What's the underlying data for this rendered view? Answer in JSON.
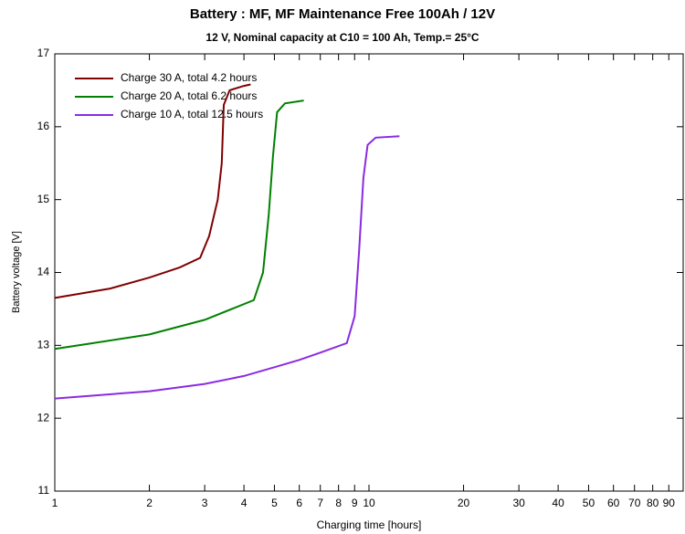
{
  "chart_data": {
    "type": "line",
    "title": "Battery :  MF,  MF Maintenance Free 100Ah / 12V",
    "subtitle": "12 V,  Nominal capacity at  C10 = 100 Ah,  Temp.= 25°C",
    "x_label": "Charging time  [hours]",
    "y_label": "Battery voltage  [V]",
    "x_scale": "log",
    "xlim": [
      1,
      100
    ],
    "xticks": [
      1,
      2,
      3,
      4,
      5,
      6,
      7,
      8,
      9,
      10,
      20,
      30,
      40,
      50,
      60,
      70,
      80,
      90
    ],
    "ylim": [
      11,
      17
    ],
    "yticks": [
      11,
      12,
      13,
      14,
      15,
      16,
      17
    ],
    "legend": "upper left",
    "series": [
      {
        "name": "Charge   30 A,  total 4.2 hours",
        "color": "#800000",
        "x": [
          1,
          1.5,
          2,
          2.5,
          2.9,
          3.1,
          3.3,
          3.4,
          3.45,
          3.6,
          4.0,
          4.2
        ],
        "values": [
          13.65,
          13.78,
          13.93,
          14.07,
          14.2,
          14.5,
          15.0,
          15.5,
          16.3,
          16.5,
          16.56,
          16.58
        ]
      },
      {
        "name": "Charge   20 A,  total 6.2 hours",
        "color": "#008000",
        "x": [
          1,
          2,
          3,
          4.3,
          4.6,
          4.8,
          4.95,
          5.1,
          5.4,
          6.2
        ],
        "values": [
          12.95,
          13.15,
          13.35,
          13.62,
          14.0,
          14.8,
          15.6,
          16.2,
          16.32,
          16.36
        ]
      },
      {
        "name": "Charge   10 A,  total 12.5 hours",
        "color": "#8a2be2",
        "x": [
          1,
          2,
          3,
          4,
          5,
          6,
          7,
          8.5,
          9,
          9.3,
          9.6,
          9.9,
          10.5,
          12.5
        ],
        "values": [
          12.27,
          12.37,
          12.47,
          12.58,
          12.7,
          12.8,
          12.9,
          13.03,
          13.4,
          14.3,
          15.3,
          15.75,
          15.85,
          15.87
        ]
      }
    ]
  }
}
